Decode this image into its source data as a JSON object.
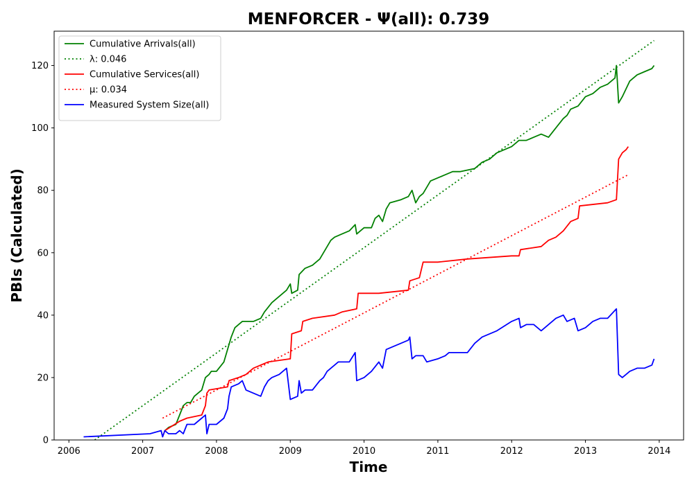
{
  "chart_data": {
    "type": "line",
    "title": "MENFORCER -  Ψ(all): 0.739",
    "xlabel": "Time",
    "ylabel": "PBIs (Calculated)",
    "xlim": [
      2005.8,
      2014.33
    ],
    "ylim": [
      0,
      131
    ],
    "x_ticks": [
      2006,
      2007,
      2008,
      2009,
      2010,
      2011,
      2012,
      2013,
      2014
    ],
    "x_tick_labels": [
      "2006",
      "2007",
      "2008",
      "2009",
      "2010",
      "2011",
      "2012",
      "2013",
      "2014"
    ],
    "y_ticks": [
      0,
      20,
      40,
      60,
      80,
      100,
      120
    ],
    "y_tick_labels": [
      "0",
      "20",
      "40",
      "60",
      "80",
      "100",
      "120"
    ],
    "grid": false,
    "legend_position": "top-left",
    "legend": [
      {
        "label": "Cumulative Arrivals(all)",
        "color": "#008000",
        "style": "solid"
      },
      {
        "label": "λ: 0.046",
        "color": "#008000",
        "style": "dotted"
      },
      {
        "label": "Cumulative Services(all)",
        "color": "#ff0000",
        "style": "solid"
      },
      {
        "label": "μ: 0.034",
        "color": "#ff0000",
        "style": "dotted"
      },
      {
        "label": "Measured System Size(all)",
        "color": "#0000ff",
        "style": "solid"
      }
    ],
    "series": [
      {
        "name": "Cumulative Arrivals(all)",
        "color": "#008000",
        "style": "solid",
        "points": [
          [
            2007.3,
            3
          ],
          [
            2007.35,
            4
          ],
          [
            2007.45,
            5
          ],
          [
            2007.5,
            8
          ],
          [
            2007.55,
            11
          ],
          [
            2007.6,
            12
          ],
          [
            2007.65,
            12
          ],
          [
            2007.7,
            14
          ],
          [
            2007.8,
            16
          ],
          [
            2007.85,
            20
          ],
          [
            2007.9,
            21
          ],
          [
            2007.93,
            22
          ],
          [
            2008.0,
            22
          ],
          [
            2008.1,
            25
          ],
          [
            2008.15,
            29
          ],
          [
            2008.2,
            33
          ],
          [
            2008.25,
            36
          ],
          [
            2008.3,
            37
          ],
          [
            2008.35,
            38
          ],
          [
            2008.4,
            38
          ],
          [
            2008.5,
            38
          ],
          [
            2008.6,
            39
          ],
          [
            2008.65,
            41
          ],
          [
            2008.75,
            44
          ],
          [
            2008.8,
            45
          ],
          [
            2008.9,
            47
          ],
          [
            2008.95,
            48
          ],
          [
            2009.0,
            50
          ],
          [
            2009.02,
            47
          ],
          [
            2009.1,
            48
          ],
          [
            2009.12,
            53
          ],
          [
            2009.2,
            55
          ],
          [
            2009.3,
            56
          ],
          [
            2009.4,
            58
          ],
          [
            2009.5,
            62
          ],
          [
            2009.55,
            64
          ],
          [
            2009.6,
            65
          ],
          [
            2009.7,
            66
          ],
          [
            2009.8,
            67
          ],
          [
            2009.88,
            69
          ],
          [
            2009.9,
            66
          ],
          [
            2010.0,
            68
          ],
          [
            2010.1,
            68
          ],
          [
            2010.15,
            71
          ],
          [
            2010.2,
            72
          ],
          [
            2010.25,
            70
          ],
          [
            2010.3,
            74
          ],
          [
            2010.35,
            76
          ],
          [
            2010.5,
            77
          ],
          [
            2010.6,
            78
          ],
          [
            2010.65,
            80
          ],
          [
            2010.7,
            76
          ],
          [
            2010.75,
            78
          ],
          [
            2010.8,
            79
          ],
          [
            2010.85,
            81
          ],
          [
            2010.9,
            83
          ],
          [
            2011.0,
            84
          ],
          [
            2011.1,
            85
          ],
          [
            2011.2,
            86
          ],
          [
            2011.3,
            86
          ],
          [
            2011.5,
            87
          ],
          [
            2011.6,
            89
          ],
          [
            2011.7,
            90
          ],
          [
            2011.8,
            92
          ],
          [
            2011.9,
            93
          ],
          [
            2012.0,
            94
          ],
          [
            2012.1,
            96
          ],
          [
            2012.2,
            96
          ],
          [
            2012.3,
            97
          ],
          [
            2012.4,
            98
          ],
          [
            2012.5,
            97
          ],
          [
            2012.6,
            100
          ],
          [
            2012.7,
            103
          ],
          [
            2012.75,
            104
          ],
          [
            2012.8,
            106
          ],
          [
            2012.9,
            107
          ],
          [
            2013.0,
            110
          ],
          [
            2013.1,
            111
          ],
          [
            2013.2,
            113
          ],
          [
            2013.3,
            114
          ],
          [
            2013.4,
            116
          ],
          [
            2013.42,
            120
          ],
          [
            2013.45,
            108
          ],
          [
            2013.5,
            110
          ],
          [
            2013.6,
            115
          ],
          [
            2013.7,
            117
          ],
          [
            2013.8,
            118
          ],
          [
            2013.9,
            119
          ],
          [
            2013.93,
            120
          ]
        ]
      },
      {
        "name": "λ: 0.046",
        "color": "#008000",
        "style": "dotted",
        "points": [
          [
            2006.35,
            0
          ],
          [
            2013.93,
            128
          ]
        ]
      },
      {
        "name": "Cumulative Services(all)",
        "color": "#ff0000",
        "style": "solid",
        "points": [
          [
            2007.27,
            1
          ],
          [
            2007.3,
            3
          ],
          [
            2007.5,
            6
          ],
          [
            2007.6,
            7
          ],
          [
            2007.8,
            8
          ],
          [
            2007.85,
            11
          ],
          [
            2007.87,
            15
          ],
          [
            2007.9,
            16
          ],
          [
            2008.15,
            17
          ],
          [
            2008.17,
            19
          ],
          [
            2008.3,
            20
          ],
          [
            2008.4,
            21
          ],
          [
            2008.5,
            23
          ],
          [
            2008.7,
            25
          ],
          [
            2009.0,
            26
          ],
          [
            2009.02,
            34
          ],
          [
            2009.15,
            35
          ],
          [
            2009.17,
            38
          ],
          [
            2009.3,
            39
          ],
          [
            2009.6,
            40
          ],
          [
            2009.7,
            41
          ],
          [
            2009.9,
            42
          ],
          [
            2009.92,
            47
          ],
          [
            2010.2,
            47
          ],
          [
            2010.6,
            48
          ],
          [
            2010.62,
            51
          ],
          [
            2010.75,
            52
          ],
          [
            2010.8,
            57
          ],
          [
            2011.0,
            57
          ],
          [
            2011.4,
            58
          ],
          [
            2012.0,
            59
          ],
          [
            2012.1,
            59
          ],
          [
            2012.12,
            61
          ],
          [
            2012.4,
            62
          ],
          [
            2012.5,
            64
          ],
          [
            2012.6,
            65
          ],
          [
            2012.7,
            67
          ],
          [
            2012.8,
            70
          ],
          [
            2012.9,
            71
          ],
          [
            2012.92,
            75
          ],
          [
            2013.3,
            76
          ],
          [
            2013.42,
            77
          ],
          [
            2013.45,
            90
          ],
          [
            2013.5,
            92
          ],
          [
            2013.55,
            93
          ],
          [
            2013.58,
            94
          ]
        ]
      },
      {
        "name": "μ: 0.034",
        "color": "#ff0000",
        "style": "dotted",
        "points": [
          [
            2007.27,
            7
          ],
          [
            2013.58,
            85
          ]
        ]
      },
      {
        "name": "Measured System Size(all)",
        "color": "#0000ff",
        "style": "solid",
        "points": [
          [
            2006.2,
            1
          ],
          [
            2007.1,
            2
          ],
          [
            2007.25,
            3
          ],
          [
            2007.27,
            1
          ],
          [
            2007.3,
            3
          ],
          [
            2007.35,
            2
          ],
          [
            2007.45,
            2
          ],
          [
            2007.5,
            3
          ],
          [
            2007.55,
            2
          ],
          [
            2007.6,
            5
          ],
          [
            2007.7,
            5
          ],
          [
            2007.8,
            7
          ],
          [
            2007.85,
            8
          ],
          [
            2007.87,
            2
          ],
          [
            2007.9,
            5
          ],
          [
            2008.0,
            5
          ],
          [
            2008.1,
            7
          ],
          [
            2008.15,
            10
          ],
          [
            2008.17,
            14
          ],
          [
            2008.2,
            17
          ],
          [
            2008.3,
            18
          ],
          [
            2008.35,
            19
          ],
          [
            2008.4,
            16
          ],
          [
            2008.5,
            15
          ],
          [
            2008.6,
            14
          ],
          [
            2008.65,
            17
          ],
          [
            2008.7,
            19
          ],
          [
            2008.75,
            20
          ],
          [
            2008.85,
            21
          ],
          [
            2008.9,
            22
          ],
          [
            2008.95,
            23
          ],
          [
            2009.0,
            13
          ],
          [
            2009.1,
            14
          ],
          [
            2009.12,
            19
          ],
          [
            2009.15,
            15
          ],
          [
            2009.2,
            16
          ],
          [
            2009.3,
            16
          ],
          [
            2009.4,
            19
          ],
          [
            2009.45,
            20
          ],
          [
            2009.5,
            22
          ],
          [
            2009.6,
            24
          ],
          [
            2009.65,
            25
          ],
          [
            2009.8,
            25
          ],
          [
            2009.88,
            28
          ],
          [
            2009.9,
            19
          ],
          [
            2010.0,
            20
          ],
          [
            2010.1,
            22
          ],
          [
            2010.2,
            25
          ],
          [
            2010.25,
            23
          ],
          [
            2010.3,
            29
          ],
          [
            2010.4,
            30
          ],
          [
            2010.5,
            31
          ],
          [
            2010.6,
            32
          ],
          [
            2010.62,
            33
          ],
          [
            2010.65,
            26
          ],
          [
            2010.7,
            27
          ],
          [
            2010.8,
            27
          ],
          [
            2010.85,
            25
          ],
          [
            2011.0,
            26
          ],
          [
            2011.1,
            27
          ],
          [
            2011.15,
            28
          ],
          [
            2011.2,
            28
          ],
          [
            2011.4,
            28
          ],
          [
            2011.5,
            31
          ],
          [
            2011.6,
            33
          ],
          [
            2011.8,
            35
          ],
          [
            2012.0,
            38
          ],
          [
            2012.1,
            39
          ],
          [
            2012.12,
            36
          ],
          [
            2012.2,
            37
          ],
          [
            2012.3,
            37
          ],
          [
            2012.4,
            35
          ],
          [
            2012.5,
            37
          ],
          [
            2012.6,
            39
          ],
          [
            2012.7,
            40
          ],
          [
            2012.75,
            38
          ],
          [
            2012.85,
            39
          ],
          [
            2012.9,
            35
          ],
          [
            2013.0,
            36
          ],
          [
            2013.1,
            38
          ],
          [
            2013.2,
            39
          ],
          [
            2013.3,
            39
          ],
          [
            2013.42,
            42
          ],
          [
            2013.45,
            21
          ],
          [
            2013.5,
            20
          ],
          [
            2013.55,
            21
          ],
          [
            2013.6,
            22
          ],
          [
            2013.7,
            23
          ],
          [
            2013.8,
            23
          ],
          [
            2013.9,
            24
          ],
          [
            2013.93,
            26
          ]
        ]
      }
    ]
  }
}
